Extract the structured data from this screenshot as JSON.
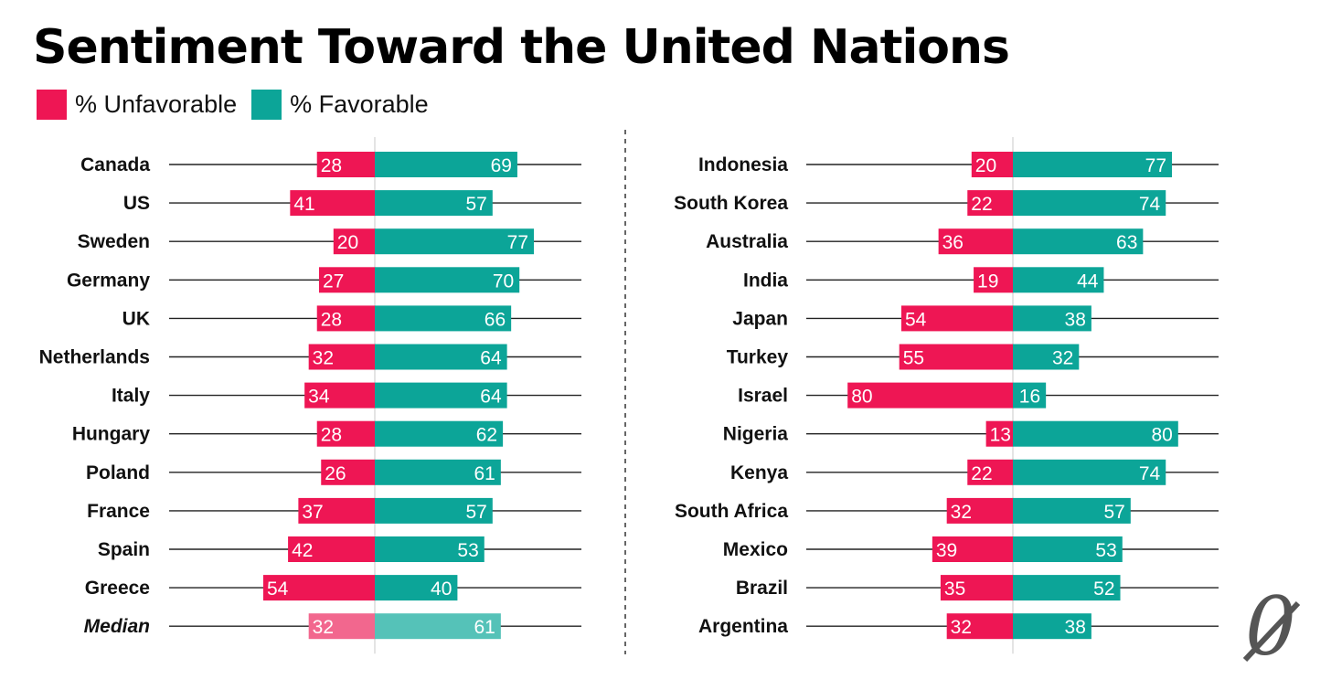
{
  "title": "Sentiment Toward the United Nations",
  "colors": {
    "unfavorable": "#EE1654",
    "favorable": "#0CA598",
    "unfavorable_median": "#F2678E",
    "favorable_median": "#55C2B8",
    "axis_line": "#222222",
    "center_line": "#c8c8c8",
    "divider": "#333333"
  },
  "legend": {
    "unfavorable_label": "% Unfavorable",
    "favorable_label": "% Favorable"
  },
  "chart_data": [
    {
      "type": "bar",
      "orientation": "diverging-horizontal",
      "categories": [
        "Canada",
        "US",
        "Sweden",
        "Germany",
        "UK",
        "Netherlands",
        "Italy",
        "Hungary",
        "Poland",
        "France",
        "Spain",
        "Greece",
        "Median"
      ],
      "series": [
        {
          "name": "% Unfavorable",
          "values": [
            28,
            41,
            20,
            27,
            28,
            32,
            34,
            28,
            26,
            37,
            42,
            54,
            32
          ]
        },
        {
          "name": "% Favorable",
          "values": [
            69,
            57,
            77,
            70,
            66,
            64,
            64,
            62,
            61,
            57,
            53,
            40,
            61
          ]
        }
      ],
      "italic_categories": [
        "Median"
      ]
    },
    {
      "type": "bar",
      "orientation": "diverging-horizontal",
      "categories": [
        "Indonesia",
        "South Korea",
        "Australia",
        "India",
        "Japan",
        "Turkey",
        "Israel",
        "Nigeria",
        "Kenya",
        "South Africa",
        "Mexico",
        "Brazil",
        "Argentina"
      ],
      "series": [
        {
          "name": "% Unfavorable",
          "values": [
            20,
            22,
            36,
            19,
            54,
            55,
            80,
            13,
            22,
            32,
            39,
            35,
            32
          ]
        },
        {
          "name": "% Favorable",
          "values": [
            77,
            74,
            63,
            44,
            38,
            32,
            16,
            80,
            74,
            57,
            53,
            52,
            38
          ]
        }
      ],
      "italic_categories": []
    }
  ],
  "logo": {
    "glyph": "0"
  }
}
